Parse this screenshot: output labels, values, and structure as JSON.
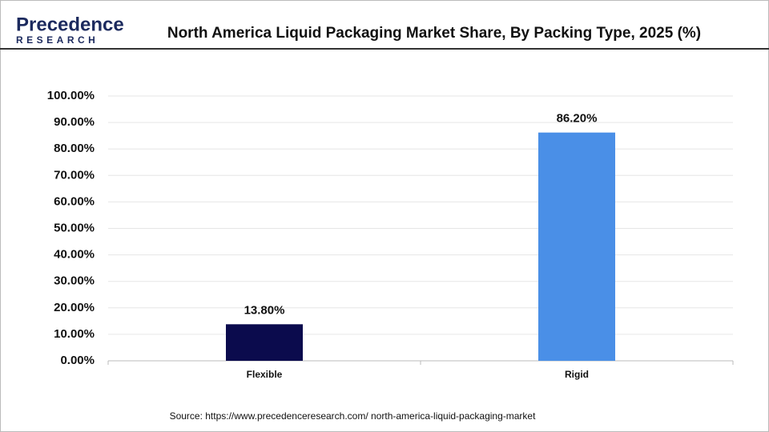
{
  "logo": {
    "name": "Precedence",
    "tagline": "RESEARCH"
  },
  "chart_data": {
    "type": "bar",
    "title": "North America Liquid Packaging Market Share, By Packing Type, 2025 (%)",
    "categories": [
      "Flexible",
      "Rigid"
    ],
    "values": [
      13.8,
      86.2
    ],
    "value_labels": [
      "13.80%",
      "86.20%"
    ],
    "colors": [
      "#0b0b4d",
      "#4a8fe7"
    ],
    "ylim": [
      0,
      100
    ],
    "yticks": [
      {
        "value": 0,
        "label": "0.00%"
      },
      {
        "value": 10,
        "label": "10.00%"
      },
      {
        "value": 20,
        "label": "20.00%"
      },
      {
        "value": 30,
        "label": "30.00%"
      },
      {
        "value": 40,
        "label": "40.00%"
      },
      {
        "value": 50,
        "label": "50.00%"
      },
      {
        "value": 60,
        "label": "60.00%"
      },
      {
        "value": 70,
        "label": "70.00%"
      },
      {
        "value": 80,
        "label": "80.00%"
      },
      {
        "value": 90,
        "label": "90.00%"
      },
      {
        "value": 100,
        "label": "100.00%"
      }
    ],
    "grid": true,
    "source": "Source: https://www.precedenceresearch.com/ north-america-liquid-packaging-market"
  }
}
